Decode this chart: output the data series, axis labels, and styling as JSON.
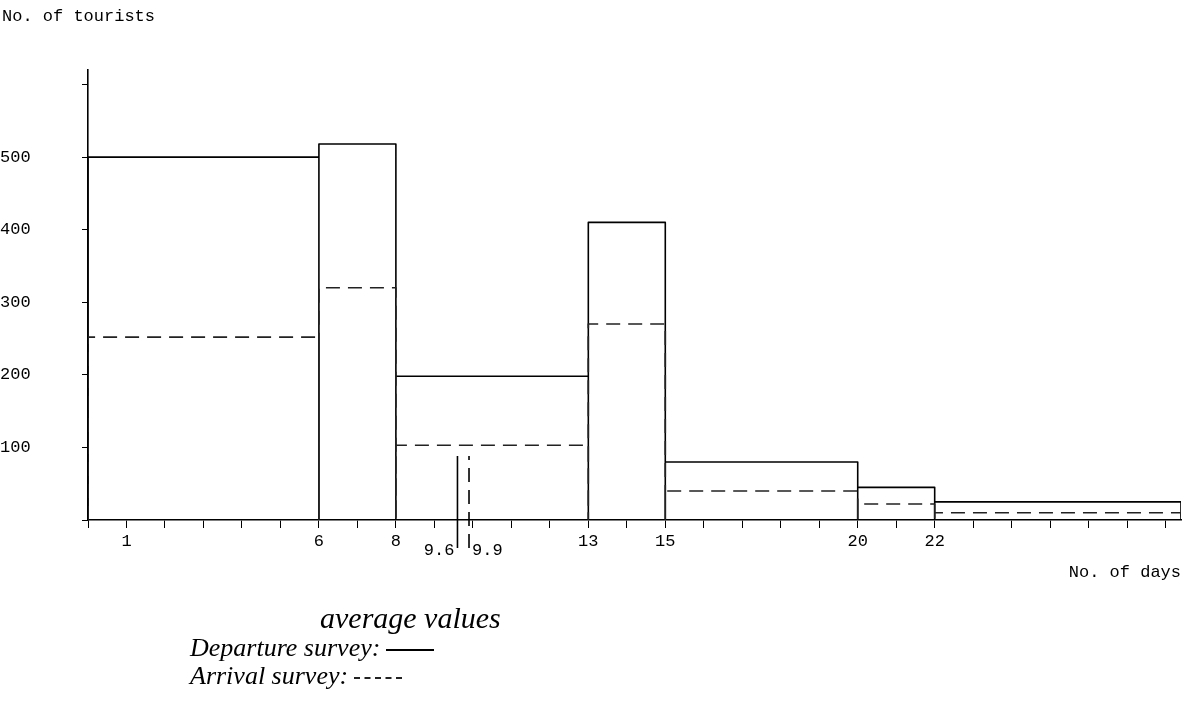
{
  "chart_data": {
    "type": "histogram",
    "ylabel": "No. of tourists",
    "xlabel": "No. of days",
    "legend_title": "average values",
    "bins": [
      0,
      6,
      8,
      13,
      15,
      20,
      22,
      28.4
    ],
    "series": [
      {
        "name": "Departure survey:",
        "color": "#000000",
        "line_style": "solid",
        "values": [
          500,
          518,
          198,
          410,
          80,
          45,
          25
        ]
      },
      {
        "name": "Arrival survey:",
        "color": "#222222",
        "line_style": "dashed",
        "values": [
          252,
          320,
          103,
          270,
          40,
          22,
          10
        ]
      }
    ],
    "xlim": [
      0,
      28.4
    ],
    "xticks": [
      {
        "value": 0,
        "label": null
      },
      1,
      {
        "value": 2,
        "label": null
      },
      {
        "value": 3,
        "label": null
      },
      {
        "value": 4,
        "label": null
      },
      {
        "value": 5,
        "label": null
      },
      6,
      {
        "value": 7,
        "label": null
      },
      8,
      {
        "value": 9,
        "label": null
      },
      {
        "value": 10,
        "label": null
      },
      {
        "value": 11,
        "label": null
      },
      {
        "value": 12,
        "label": null
      },
      13,
      {
        "value": 14,
        "label": null
      },
      15,
      {
        "value": 16,
        "label": null
      },
      {
        "value": 17,
        "label": null
      },
      {
        "value": 18,
        "label": null
      },
      {
        "value": 19,
        "label": null
      },
      20,
      {
        "value": 21,
        "label": null
      },
      22,
      {
        "value": 23,
        "label": null
      },
      {
        "value": 24,
        "label": null
      },
      {
        "value": 25,
        "label": null
      },
      {
        "value": 26,
        "label": null
      },
      {
        "value": 27,
        "label": null
      },
      {
        "value": 28,
        "label": null
      }
    ],
    "ylim": [
      0,
      620
    ],
    "yticks": [
      {
        "value": 0,
        "label": null
      },
      100,
      200,
      300,
      400,
      500,
      {
        "value": 600,
        "label": null
      }
    ],
    "ref_lines": [
      {
        "axis": "x",
        "value": 9.6,
        "label": "9.6",
        "line_style": "solid",
        "color": "#000000"
      },
      {
        "axis": "x",
        "value": 9.9,
        "label": "9.9",
        "line_style": "dashed",
        "color": "#000000"
      }
    ],
    "grid": false,
    "legend": "bottom left"
  }
}
